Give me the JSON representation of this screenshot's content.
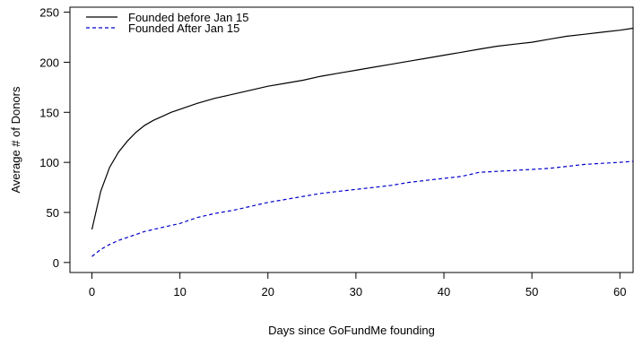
{
  "chart_data": {
    "type": "line",
    "title": "",
    "xlabel": "Days since GoFundMe founding",
    "ylabel": "Average # of Donors",
    "xlim": [
      -2.5,
      61.5
    ],
    "ylim": [
      -10,
      255
    ],
    "x_ticks": [
      0,
      10,
      20,
      30,
      40,
      50,
      60
    ],
    "y_ticks": [
      0,
      50,
      100,
      150,
      200,
      250
    ],
    "legend_position": "top-left",
    "series": [
      {
        "name": "Founded before Jan 15",
        "color": "#000000",
        "style": "solid",
        "x": [
          0,
          1,
          2,
          3,
          4,
          5,
          6,
          7,
          8,
          9,
          10,
          12,
          14,
          16,
          18,
          20,
          22,
          24,
          26,
          28,
          30,
          32,
          34,
          36,
          38,
          40,
          42,
          44,
          46,
          48,
          50,
          52,
          54,
          56,
          58,
          60,
          61.5
        ],
        "y": [
          33,
          71,
          95,
          110,
          121,
          130,
          137,
          142,
          146,
          150,
          153,
          159,
          164,
          168,
          172,
          176,
          179,
          182,
          186,
          189,
          192,
          195,
          198,
          201,
          204,
          207,
          210,
          213,
          216,
          218,
          220,
          223,
          226,
          228,
          230,
          232,
          234
        ]
      },
      {
        "name": "Founded After Jan 15",
        "color": "#0000cc",
        "style": "dashed",
        "x": [
          0,
          1,
          2,
          3,
          4,
          5,
          6,
          7,
          8,
          9,
          10,
          12,
          14,
          16,
          18,
          20,
          22,
          24,
          26,
          28,
          30,
          32,
          34,
          36,
          38,
          40,
          42,
          44,
          46,
          48,
          50,
          52,
          54,
          56,
          58,
          60,
          61.5
        ],
        "y": [
          6,
          13,
          18,
          22,
          25,
          28,
          31,
          33,
          35,
          37,
          39,
          45,
          49,
          52,
          56,
          60,
          63,
          66,
          69,
          71,
          73,
          75,
          77,
          80,
          82,
          84,
          86,
          90,
          91,
          92,
          93,
          94,
          96,
          98,
          99,
          100,
          101
        ]
      }
    ]
  }
}
